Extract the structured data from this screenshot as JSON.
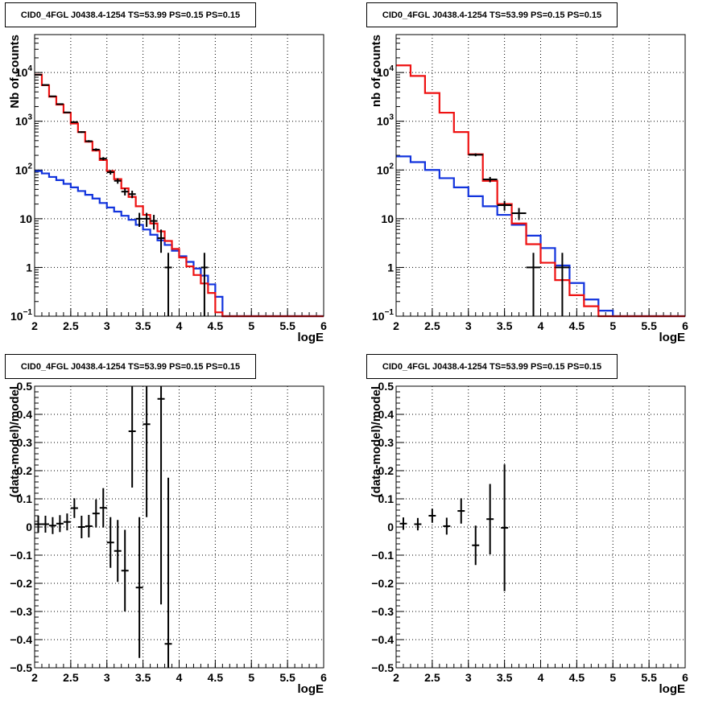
{
  "colors": {
    "total_model": "#ee1111",
    "component_model": "#1133dd",
    "data": "#000000",
    "grid": "#000000"
  },
  "chart_data": [
    {
      "type": "line",
      "title": "CID0_4FGL J0438.4-1254 TS=53.99 PS=0.15 PS=0.15",
      "xlabel": "logE",
      "ylabel": "Nb of counts",
      "xlim": [
        2,
        6
      ],
      "ylim": [
        0.1,
        60000
      ],
      "yscale": "log",
      "grid": true,
      "xticks": [
        "2",
        "2.5",
        "3",
        "3.5",
        "4",
        "4.5",
        "5",
        "5.5",
        "6"
      ],
      "yticks": [
        "10^-1",
        "1",
        "10",
        "10^2",
        "10^3",
        "10^4"
      ],
      "bin_edges": [
        2.0,
        2.1,
        2.2,
        2.3,
        2.4,
        2.5,
        2.6,
        2.7,
        2.8,
        2.9,
        3.0,
        3.1,
        3.2,
        3.3,
        3.4,
        3.5,
        3.6,
        3.7,
        3.8,
        3.9,
        4.0,
        4.1,
        4.2,
        4.3,
        4.4,
        4.5,
        4.6,
        4.7,
        4.8,
        4.9,
        5.0,
        5.1,
        5.2,
        5.3,
        5.4,
        5.5,
        5.6,
        5.7,
        5.8,
        5.9,
        6.0
      ],
      "series": [
        {
          "values": [
            9000,
            5500,
            3200,
            2200,
            1500,
            900,
            600,
            380,
            250,
            160,
            95,
            65,
            42,
            28,
            18,
            12,
            8,
            5.5,
            3.5,
            2.4,
            1.6,
            1.05,
            0.7,
            0.47,
            0.3,
            0.12,
            0.1,
            0.1,
            0.1,
            0.1,
            0.1,
            0.1,
            0.1,
            0.1,
            0.1,
            0.1,
            0.1,
            0.1,
            0.1,
            0.1
          ]
        },
        {
          "values": [
            95,
            85,
            72,
            62,
            52,
            44,
            37,
            31,
            26,
            21,
            17,
            14,
            11.5,
            9.5,
            7.5,
            6.0,
            4.7,
            3.6,
            2.9,
            2.2,
            1.7,
            1.3,
            0.95,
            0.68,
            0.45,
            0.25,
            0.1,
            0.1,
            0.1,
            0.1,
            0.1,
            0.1,
            0.1,
            0.1,
            0.1,
            0.1,
            0.1,
            0.1,
            0.1,
            0.1
          ]
        }
      ],
      "points": [
        {
          "x": 2.05,
          "y": 9000,
          "elo": 95,
          "ehi": 95
        },
        {
          "x": 2.15,
          "y": 5550,
          "elo": 74,
          "ehi": 74
        },
        {
          "x": 2.25,
          "y": 3250,
          "elo": 57,
          "ehi": 57
        },
        {
          "x": 2.35,
          "y": 2250,
          "elo": 47,
          "ehi": 47
        },
        {
          "x": 2.45,
          "y": 1520,
          "elo": 39,
          "ehi": 39
        },
        {
          "x": 2.55,
          "y": 960,
          "elo": 31,
          "ehi": 31
        },
        {
          "x": 2.65,
          "y": 600,
          "elo": 24,
          "ehi": 24
        },
        {
          "x": 2.75,
          "y": 390,
          "elo": 20,
          "ehi": 20
        },
        {
          "x": 2.85,
          "y": 262,
          "elo": 16,
          "ehi": 16
        },
        {
          "x": 2.95,
          "y": 171,
          "elo": 13,
          "ehi": 13
        },
        {
          "x": 3.05,
          "y": 90,
          "elo": 9.5,
          "ehi": 9.5
        },
        {
          "x": 3.15,
          "y": 60,
          "elo": 7.7,
          "ehi": 7.7
        },
        {
          "x": 3.25,
          "y": 36,
          "elo": 6,
          "ehi": 6
        },
        {
          "x": 3.35,
          "y": 32,
          "elo": 5.6,
          "ehi": 5.6
        },
        {
          "x": 3.45,
          "y": 10,
          "elo": 3.2,
          "ehi": 3.2
        },
        {
          "x": 3.55,
          "y": 10,
          "elo": 3.2,
          "ehi": 3.2
        },
        {
          "x": 3.65,
          "y": 9,
          "elo": 3,
          "ehi": 3
        },
        {
          "x": 3.75,
          "y": 4,
          "elo": 2,
          "ehi": 2
        },
        {
          "x": 3.85,
          "y": 1,
          "elo": 0.99,
          "ehi": 1
        },
        {
          "x": 4.35,
          "y": 1,
          "elo": 0.99,
          "ehi": 1
        }
      ]
    },
    {
      "type": "line",
      "title": "CID0_4FGL J0438.4-1254 TS=53.99 PS=0.15 PS=0.15",
      "xlabel": "logE",
      "ylabel": "nb of counts",
      "xlim": [
        2,
        6
      ],
      "ylim": [
        0.1,
        60000
      ],
      "yscale": "log",
      "grid": true,
      "xticks": [
        "2",
        "2.5",
        "3",
        "3.5",
        "4",
        "4.5",
        "5",
        "5.5",
        "6"
      ],
      "yticks": [
        "10^-1",
        "1",
        "10",
        "10^2",
        "10^3",
        "10^4"
      ],
      "bin_edges": [
        2.0,
        2.2,
        2.4,
        2.6,
        2.8,
        3.0,
        3.2,
        3.4,
        3.6,
        3.8,
        4.0,
        4.2,
        4.4,
        4.6,
        4.8,
        5.0,
        5.2,
        5.4,
        5.6,
        5.8,
        6.0
      ],
      "series": [
        {
          "values": [
            14000,
            8500,
            3800,
            1500,
            600,
            210,
            60,
            20,
            8,
            3.0,
            1.25,
            0.55,
            0.27,
            0.16,
            0.1,
            0.1,
            0.1,
            0.1,
            0.1,
            0.1
          ]
        },
        {
          "values": [
            190,
            145,
            100,
            68,
            44,
            29,
            18,
            12,
            7.5,
            4.5,
            2.5,
            1.1,
            0.48,
            0.22,
            0.13,
            0.1,
            0.1,
            0.1,
            0.1,
            0.1
          ]
        }
      ],
      "points": [
        {
          "x": 3.1,
          "y": 205,
          "elo": 14,
          "ehi": 14
        },
        {
          "x": 3.3,
          "y": 64,
          "elo": 8,
          "ehi": 8
        },
        {
          "x": 3.5,
          "y": 19,
          "elo": 4.4,
          "ehi": 4.4
        },
        {
          "x": 3.7,
          "y": 13,
          "elo": 3.6,
          "ehi": 3.6
        },
        {
          "x": 3.9,
          "y": 1,
          "elo": 0.99,
          "ehi": 1
        },
        {
          "x": 4.3,
          "y": 1,
          "elo": 0.99,
          "ehi": 1
        }
      ]
    },
    {
      "type": "scatter",
      "title": "CID0_4FGL J0438.4-1254 TS=53.99 PS=0.15 PS=0.15",
      "xlabel": "logE",
      "ylabel": "(data-model)/model",
      "xlim": [
        2,
        6
      ],
      "ylim": [
        -0.5,
        0.5
      ],
      "grid": true,
      "xticks": [
        "2",
        "2.5",
        "3",
        "3.5",
        "4",
        "4.5",
        "5",
        "5.5",
        "6"
      ],
      "yticks": [
        "−0.5",
        "−0.4",
        "−0.3",
        "−0.2",
        "−0.1",
        "0",
        "0.1",
        "0.2",
        "0.3",
        "0.4",
        "0.5"
      ],
      "points": [
        {
          "x": 2.05,
          "y": 0.01,
          "e": 0.03
        },
        {
          "x": 2.15,
          "y": 0.01,
          "e": 0.03
        },
        {
          "x": 2.25,
          "y": 0.005,
          "e": 0.03
        },
        {
          "x": 2.35,
          "y": 0.012,
          "e": 0.03
        },
        {
          "x": 2.45,
          "y": 0.018,
          "e": 0.03
        },
        {
          "x": 2.55,
          "y": 0.067,
          "e": 0.035
        },
        {
          "x": 2.65,
          "y": 0.0,
          "e": 0.04
        },
        {
          "x": 2.75,
          "y": 0.003,
          "e": 0.04
        },
        {
          "x": 2.85,
          "y": 0.048,
          "e": 0.05
        },
        {
          "x": 2.95,
          "y": 0.068,
          "e": 0.07
        },
        {
          "x": 3.05,
          "y": -0.055,
          "e": 0.09
        },
        {
          "x": 3.15,
          "y": -0.085,
          "e": 0.11
        },
        {
          "x": 3.25,
          "y": -0.155,
          "e": 0.145
        },
        {
          "x": 3.35,
          "y": 0.34,
          "e": 0.2
        },
        {
          "x": 3.45,
          "y": -0.215,
          "e": 0.25
        },
        {
          "x": 3.55,
          "y": 0.365,
          "e": 0.33
        },
        {
          "x": 3.75,
          "y": 0.455,
          "e": 0.73
        },
        {
          "x": 3.85,
          "y": -0.415,
          "e": 0.59
        }
      ]
    },
    {
      "type": "scatter",
      "title": "CID0_4FGL J0438.4-1254 TS=53.99 PS=0.15 PS=0.15",
      "xlabel": "logE",
      "ylabel": "(data-model)/model",
      "xlim": [
        2,
        6
      ],
      "ylim": [
        -0.5,
        0.5
      ],
      "grid": true,
      "xticks": [
        "2",
        "2.5",
        "3",
        "3.5",
        "4",
        "4.5",
        "5",
        "5.5",
        "6"
      ],
      "yticks": [
        "−0.5",
        "−0.4",
        "−0.3",
        "−0.2",
        "−0.1",
        "0",
        "0.1",
        "0.2",
        "0.3",
        "0.4",
        "0.5"
      ],
      "points": [
        {
          "x": 2.1,
          "y": 0.012,
          "e": 0.022
        },
        {
          "x": 2.3,
          "y": 0.01,
          "e": 0.022
        },
        {
          "x": 2.5,
          "y": 0.04,
          "e": 0.025
        },
        {
          "x": 2.7,
          "y": 0.003,
          "e": 0.03
        },
        {
          "x": 2.9,
          "y": 0.057,
          "e": 0.045
        },
        {
          "x": 3.1,
          "y": -0.065,
          "e": 0.07
        },
        {
          "x": 3.3,
          "y": 0.028,
          "e": 0.125
        },
        {
          "x": 3.5,
          "y": -0.003,
          "e": 0.225
        }
      ]
    }
  ]
}
